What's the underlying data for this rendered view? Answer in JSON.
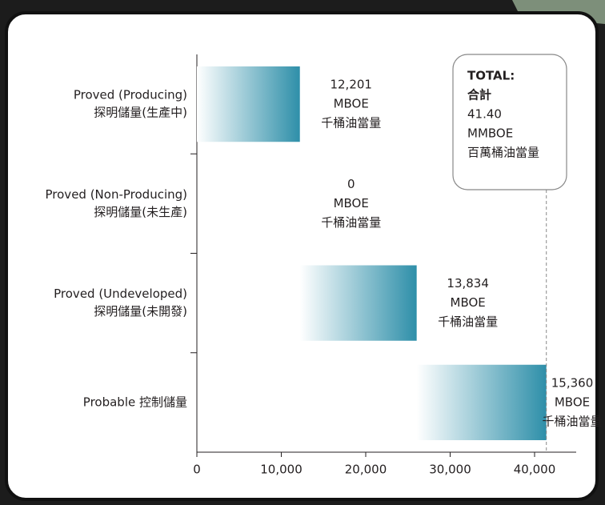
{
  "chart_data": {
    "type": "waterfall-bar",
    "categories": [
      [
        "Proved (Producing)",
        "探明儲量(生產中)"
      ],
      [
        "Proved (Non-Producing)",
        "探明儲量(未生產)"
      ],
      [
        "Proved (Undeveloped)",
        "探明儲量(未開發)"
      ],
      [
        "Probable 控制儲量"
      ]
    ],
    "values": [
      12201,
      0,
      13834,
      15360
    ],
    "value_labels": [
      "12,201",
      "0",
      "13,834",
      "15,360"
    ],
    "unit_labels": [
      "MBOE",
      "千桶油當量"
    ],
    "color": "#2e8fa9",
    "xlim": [
      0,
      45000
    ],
    "xticks": [
      0,
      {
        "value": 10000,
        "label": "10,000"
      },
      {
        "value": 20000,
        "label": "20,000"
      },
      {
        "value": 30000,
        "label": "30,000"
      },
      {
        "value": 40000,
        "label": "40,000"
      }
    ],
    "annotation": {
      "lines": [
        "TOTAL:",
        "合計",
        "41.40",
        "MMBOE",
        "百萬桶油當量"
      ]
    }
  }
}
